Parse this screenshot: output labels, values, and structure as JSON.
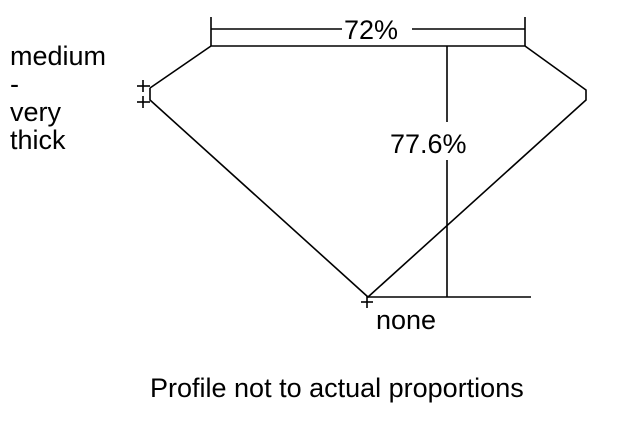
{
  "diagram": {
    "table_label": "72%",
    "depth_label": "77.6%",
    "girdle_label_lines": [
      "medium",
      "-",
      "very",
      "thick"
    ],
    "culet_label": "none",
    "caption": "Profile not to actual proportions",
    "line_color": "#000000",
    "background_color": "#ffffff"
  }
}
